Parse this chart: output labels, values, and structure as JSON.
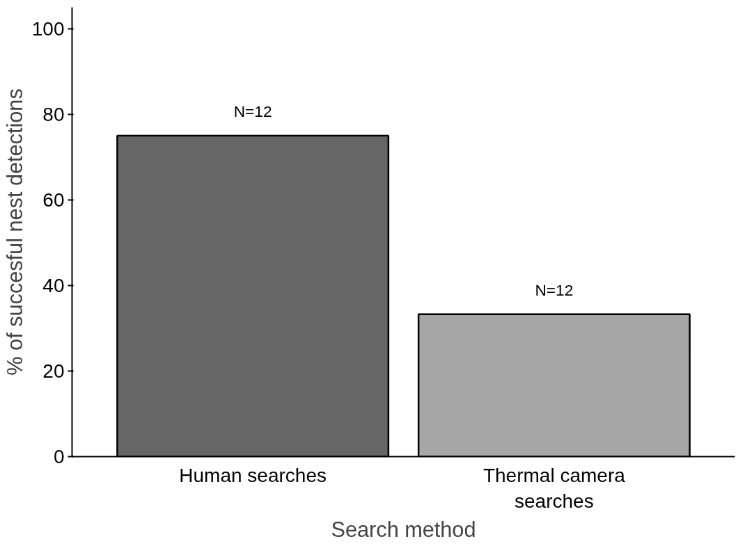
{
  "chart_data": {
    "type": "bar",
    "xlabel": "Search method",
    "ylabel": "% of succesful nest detections",
    "categories": [
      "Human searches",
      "Thermal camera searches"
    ],
    "values": [
      75,
      33.3
    ],
    "colors": [
      "#666666",
      "#a6a6a6"
    ],
    "ylim": [
      0,
      105
    ],
    "yticks": [
      0,
      20,
      40,
      60,
      80,
      100
    ],
    "grid": false,
    "annotations": [
      "N=12",
      "N=12"
    ]
  }
}
